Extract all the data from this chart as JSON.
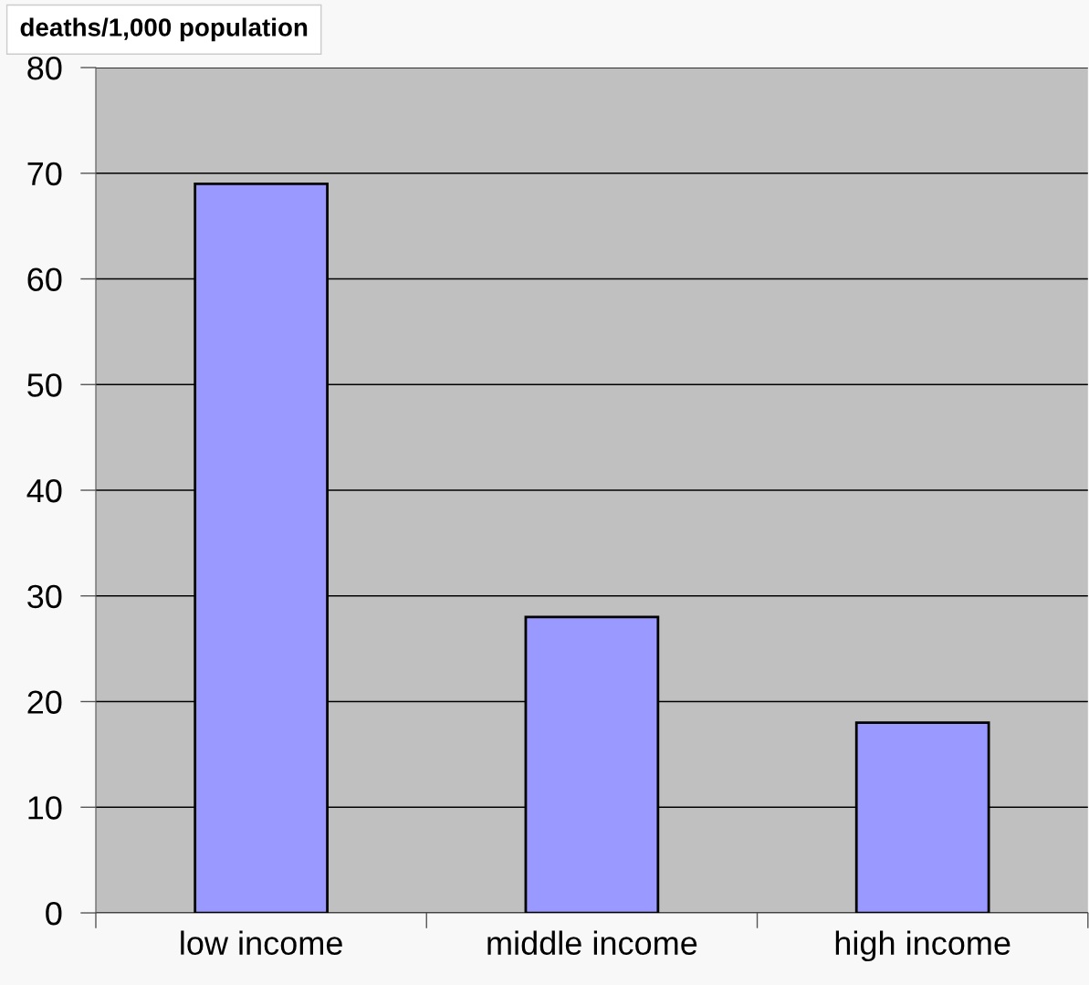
{
  "chart_data": {
    "type": "bar",
    "ylabel": "deaths/1,000 population",
    "categories": [
      "low income",
      "middle income",
      "high income"
    ],
    "values": [
      69,
      28,
      18
    ],
    "color": "#9999ff",
    "ylim": [
      0,
      80
    ],
    "yticks": [
      0,
      10,
      20,
      30,
      40,
      50,
      60,
      70,
      80
    ],
    "grid": "y",
    "legend": false
  }
}
